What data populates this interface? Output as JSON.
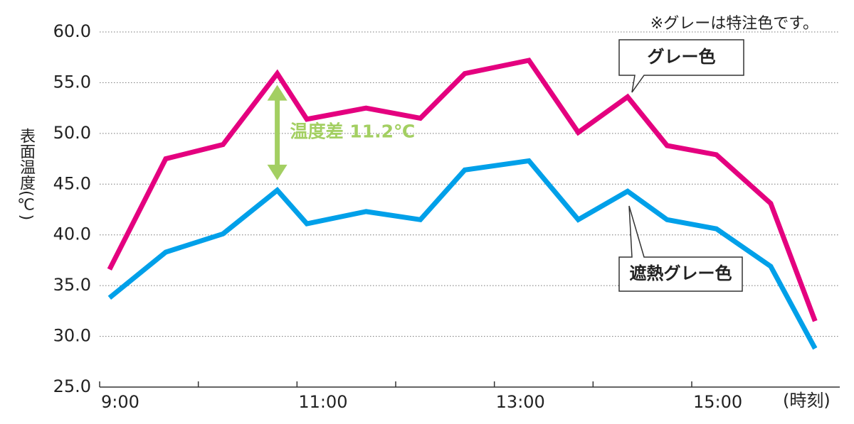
{
  "chart_data": {
    "type": "line",
    "y_label": "表面温度(℃)",
    "x_label": "(時刻)",
    "note": "※グレーは特注色です。",
    "annotation": "温度差 11.2℃",
    "annotation_color": "#a3cf62",
    "x": [
      9.1,
      9.67,
      10.25,
      10.8,
      11.1,
      11.7,
      12.25,
      12.7,
      13.35,
      13.85,
      14.35,
      14.75,
      15.25,
      15.8,
      16.25
    ],
    "series": [
      {
        "name": "グレー色",
        "color": "#e4007f",
        "values": [
          36.6,
          47.5,
          48.9,
          55.9,
          51.4,
          52.5,
          51.5,
          55.9,
          57.2,
          50.1,
          53.6,
          48.8,
          47.9,
          43.1,
          31.5
        ]
      },
      {
        "name": "遮熱グレー色",
        "color": "#00a0e9",
        "values": [
          33.8,
          38.3,
          40.1,
          44.4,
          41.1,
          42.3,
          41.5,
          46.4,
          47.3,
          41.5,
          44.3,
          41.5,
          40.6,
          36.9,
          28.8
        ]
      }
    ],
    "xlim": [
      9,
      16.5
    ],
    "xticks": [
      {
        "value": 9,
        "label": "9:00"
      },
      {
        "value": 11,
        "label": "11:00"
      },
      {
        "value": 13,
        "label": "13:00"
      },
      {
        "value": 15,
        "label": "15:00"
      }
    ],
    "xminor_ticks": [
      10,
      12,
      14
    ],
    "ylim": [
      25,
      60
    ],
    "yticks": [
      {
        "value": 25,
        "label": "25.0"
      },
      {
        "value": 30,
        "label": "30.0"
      },
      {
        "value": 35,
        "label": "35.0"
      },
      {
        "value": 40,
        "label": "40.0"
      },
      {
        "value": 45,
        "label": "45.0"
      },
      {
        "value": 50,
        "label": "50.0"
      },
      {
        "value": 55,
        "label": "55.0"
      },
      {
        "value": 60,
        "label": "60.0"
      }
    ],
    "grid": true
  }
}
